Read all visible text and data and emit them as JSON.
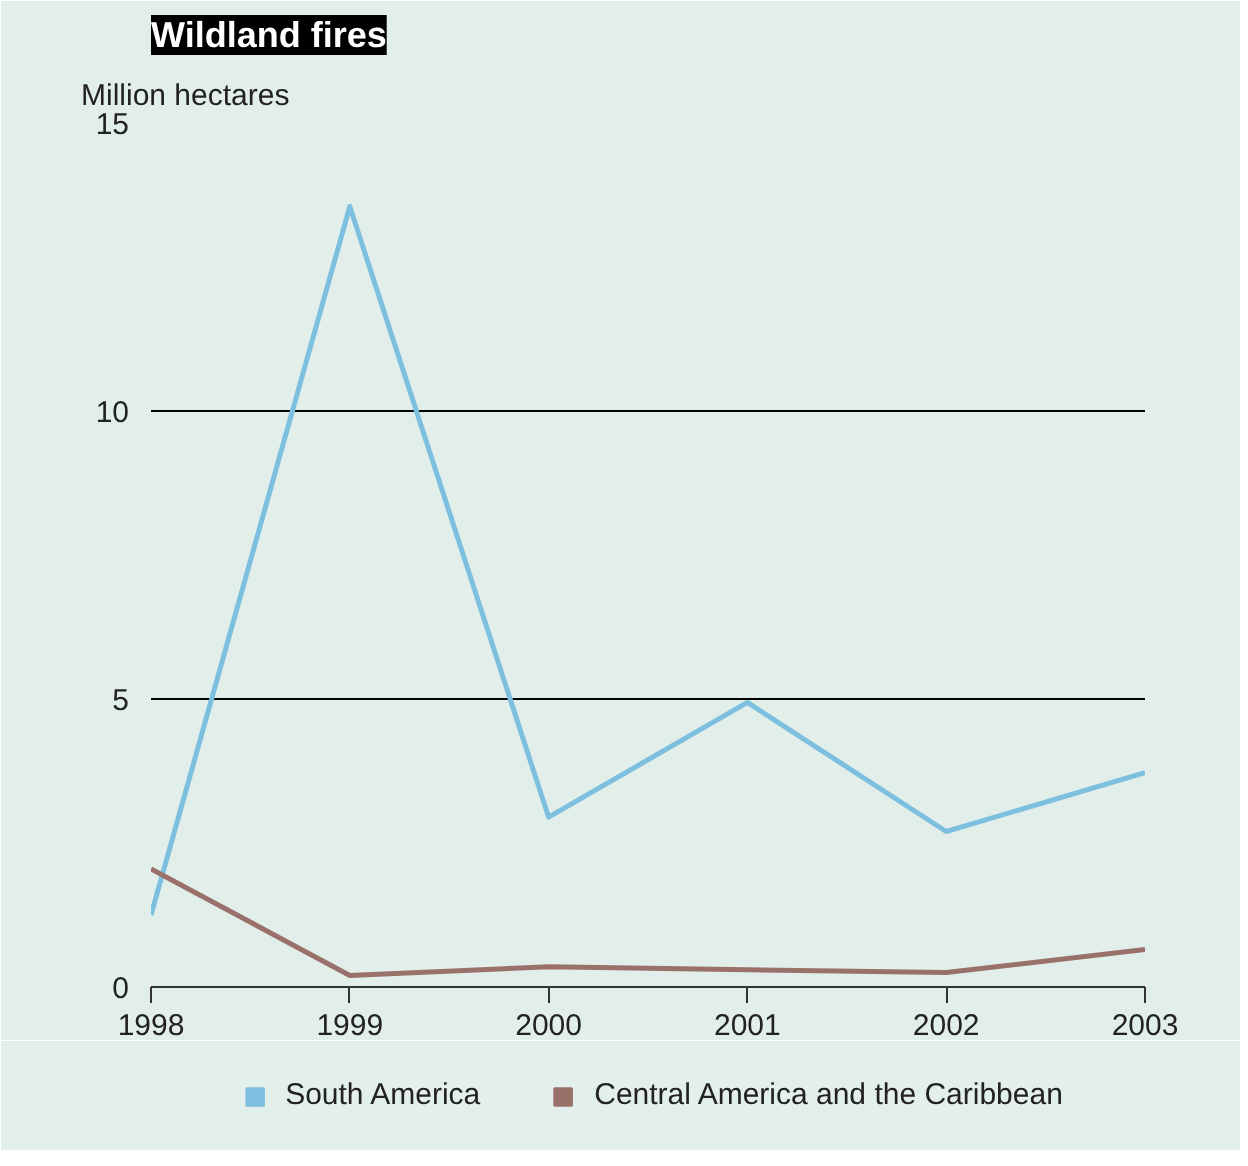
{
  "chart_data": {
    "type": "line",
    "title": "Wildland fires",
    "ylabel": "Million hectares",
    "x": [
      1998,
      1999,
      2000,
      2001,
      2002,
      2003
    ],
    "series": [
      {
        "name": "South America",
        "color": "#7dbfdf",
        "values": [
          1.25,
          13.55,
          2.95,
          4.94,
          2.7,
          3.72
        ]
      },
      {
        "name": "Central America and the Caribbean",
        "color": "#9a716a",
        "values": [
          2.05,
          0.2,
          0.35,
          0.3,
          0.25,
          0.65
        ]
      }
    ],
    "xlim": [
      1998,
      2003
    ],
    "xticks": [
      1998,
      1999,
      2000,
      2001,
      2002,
      2003
    ],
    "ylim": [
      0,
      15
    ],
    "yticks": [
      0,
      5,
      10,
      15
    ],
    "grid": "y",
    "legend": "bottom",
    "marker": "none",
    "line_style": "solid"
  }
}
